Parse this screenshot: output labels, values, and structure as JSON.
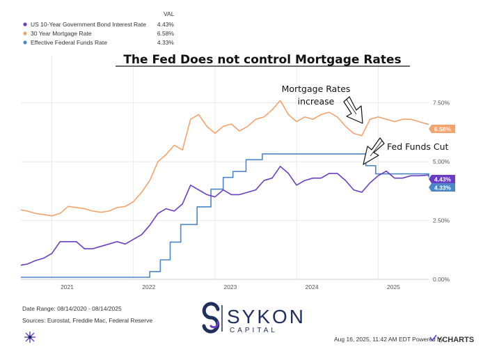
{
  "chart_data": {
    "type": "line",
    "title": "The Fed Does not control Mortgage Rates",
    "legend_header": "VAL",
    "x_ticks": [
      "2021",
      "2022",
      "2023",
      "2024",
      "2025"
    ],
    "y_ticks": [
      "7.50%",
      "5.00%",
      "2.50%",
      "0.00%"
    ],
    "y_tick_values": [
      7.5,
      5.0,
      2.5,
      0.0
    ],
    "ylim": [
      0,
      9.5
    ],
    "xlim": [
      2020.62,
      2025.62
    ],
    "grid": true,
    "series": [
      {
        "name": "US 10-Year Government Bond Interest Rate",
        "value_label": "4.43%",
        "color": "#6a3dc4",
        "step": false,
        "x": [
          2020.62,
          2020.7,
          2020.8,
          2020.9,
          2021.0,
          2021.1,
          2021.2,
          2021.3,
          2021.4,
          2021.5,
          2021.6,
          2021.7,
          2021.8,
          2021.9,
          2022.0,
          2022.1,
          2022.2,
          2022.3,
          2022.4,
          2022.5,
          2022.6,
          2022.7,
          2022.8,
          2022.9,
          2023.0,
          2023.1,
          2023.2,
          2023.3,
          2023.4,
          2023.5,
          2023.6,
          2023.7,
          2023.8,
          2023.9,
          2024.0,
          2024.1,
          2024.2,
          2024.3,
          2024.4,
          2024.5,
          2024.6,
          2024.7,
          2024.8,
          2024.9,
          2025.0,
          2025.1,
          2025.2,
          2025.3,
          2025.4,
          2025.5,
          2025.62
        ],
        "values": [
          0.6,
          0.65,
          0.8,
          0.9,
          1.1,
          1.6,
          1.6,
          1.6,
          1.3,
          1.3,
          1.4,
          1.5,
          1.6,
          1.5,
          1.7,
          1.9,
          2.3,
          2.8,
          3.0,
          2.9,
          3.2,
          4.0,
          3.8,
          3.6,
          3.5,
          3.8,
          3.6,
          3.6,
          3.7,
          3.8,
          4.2,
          4.3,
          4.8,
          4.5,
          4.0,
          4.2,
          4.3,
          4.3,
          4.5,
          4.5,
          4.2,
          3.8,
          3.7,
          4.1,
          4.4,
          4.6,
          4.3,
          4.3,
          4.4,
          4.4,
          4.43
        ]
      },
      {
        "name": "30 Year Mortgage Rate",
        "value_label": "6.58%",
        "color": "#f5a36c",
        "step": false,
        "x": [
          2020.62,
          2020.7,
          2020.8,
          2020.9,
          2021.0,
          2021.1,
          2021.2,
          2021.3,
          2021.4,
          2021.5,
          2021.6,
          2021.7,
          2021.8,
          2021.9,
          2022.0,
          2022.1,
          2022.2,
          2022.3,
          2022.4,
          2022.5,
          2022.6,
          2022.7,
          2022.8,
          2022.9,
          2023.0,
          2023.1,
          2023.2,
          2023.3,
          2023.4,
          2023.5,
          2023.6,
          2023.7,
          2023.8,
          2023.9,
          2024.0,
          2024.1,
          2024.2,
          2024.3,
          2024.4,
          2024.5,
          2024.6,
          2024.7,
          2024.8,
          2024.9,
          2025.0,
          2025.1,
          2025.2,
          2025.3,
          2025.4,
          2025.5,
          2025.62
        ],
        "values": [
          2.95,
          2.9,
          2.8,
          2.75,
          2.7,
          2.8,
          3.1,
          3.05,
          3.0,
          2.9,
          2.85,
          2.9,
          3.05,
          3.1,
          3.3,
          3.7,
          4.2,
          5.0,
          5.3,
          5.7,
          5.5,
          6.8,
          7.0,
          6.5,
          6.2,
          6.5,
          6.6,
          6.3,
          6.5,
          6.8,
          6.9,
          7.2,
          7.6,
          7.0,
          6.7,
          6.9,
          6.8,
          7.0,
          7.1,
          6.9,
          6.5,
          6.2,
          6.1,
          6.8,
          6.9,
          6.8,
          6.7,
          6.8,
          6.8,
          6.7,
          6.58
        ]
      },
      {
        "name": "Effective Federal Funds Rate",
        "value_label": "4.33%",
        "color": "#4a86c8",
        "step": true,
        "x": [
          2020.62,
          2022.2,
          2022.33,
          2022.45,
          2022.58,
          2022.78,
          2022.95,
          2023.1,
          2023.22,
          2023.38,
          2023.58,
          2024.72,
          2024.85,
          2024.97,
          2025.62
        ],
        "values": [
          0.09,
          0.33,
          0.83,
          1.58,
          2.33,
          3.08,
          3.83,
          4.33,
          4.58,
          5.08,
          5.33,
          5.33,
          4.83,
          4.48,
          4.33
        ]
      }
    ],
    "annotations": [
      {
        "lines": [
          "Mortgage Rates",
          "increase"
        ]
      },
      {
        "lines": [
          "Fed Funds Cut"
        ]
      }
    ]
  },
  "footer": {
    "date_range": "Date Range: 08/14/2020 - 08/14/2025",
    "sources": "Sources: Eurostat, Freddie Mac, Federal Reserve",
    "timestamp": "Aug 16, 2025, 11:42 AM EDT Powered by",
    "provider": "YCHARTS"
  },
  "logo": {
    "name": "SYKON",
    "sub": "CAPITAL",
    "icon": "sykon-s-icon"
  },
  "colors": {
    "grid": "#e6e6e6",
    "axis": "#cccccc"
  }
}
